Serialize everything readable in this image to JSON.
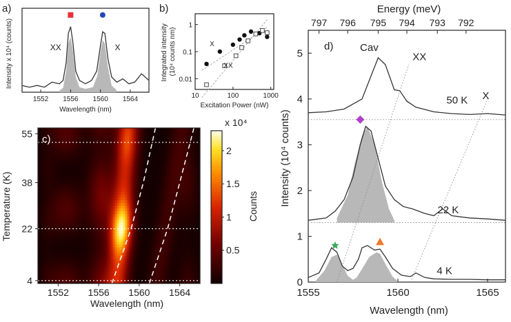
{
  "chart_data": [
    {
      "panel": "a)",
      "type": "area",
      "xlabel": "Wavelength (nm)",
      "ylabel": "Intensity x 10⁴ (counts)",
      "xlim": [
        1549.5,
        1566.5
      ],
      "ylim": [
        0,
        1.0
      ],
      "xticks": [
        1552,
        1556,
        1560,
        1564
      ],
      "line": {
        "x": [
          1549.5,
          1550.5,
          1551.5,
          1552.5,
          1553.5,
          1554.5,
          1555.0,
          1555.4,
          1555.7,
          1556.0,
          1556.3,
          1556.7,
          1557.2,
          1558.0,
          1558.8,
          1559.5,
          1560.0,
          1560.3,
          1560.6,
          1561.0,
          1561.5,
          1562.2,
          1563.0,
          1563.8,
          1564.6,
          1565.5,
          1566.5
        ],
        "y": [
          0.08,
          0.06,
          0.08,
          0.06,
          0.12,
          0.1,
          0.14,
          0.35,
          0.7,
          0.78,
          0.6,
          0.25,
          0.14,
          0.1,
          0.14,
          0.25,
          0.55,
          0.72,
          0.7,
          0.4,
          0.18,
          0.12,
          0.16,
          0.1,
          0.12,
          0.22,
          0.14
        ]
      },
      "fill": {
        "x": [
          1554.5,
          1555.0,
          1555.4,
          1555.7,
          1556.0,
          1556.3,
          1556.7,
          1557.2,
          1558.0,
          1559.0,
          1559.6,
          1560.0,
          1560.3,
          1560.6,
          1561.0,
          1561.5,
          1562.2
        ],
        "y": [
          0.02,
          0.05,
          0.25,
          0.58,
          0.66,
          0.5,
          0.18,
          0.06,
          0.04,
          0.06,
          0.2,
          0.48,
          0.62,
          0.58,
          0.3,
          0.08,
          0.02
        ]
      },
      "annotations": [
        {
          "text": "XX",
          "x": 1554.0,
          "y": 0.5
        },
        {
          "text": "X",
          "x": 1562.3,
          "y": 0.5
        }
      ],
      "markers": [
        {
          "shape": "square",
          "color": "#e8303a",
          "x": 1556.0,
          "y": 0.92
        },
        {
          "shape": "circle",
          "color": "#2846b8",
          "x": 1560.3,
          "y": 0.92
        }
      ]
    },
    {
      "panel": "b)",
      "type": "scatter",
      "xscale": "log",
      "yscale": "log",
      "xlabel": "Excitation Power (nW)",
      "ylabel": "Integrated intensity (10⁴ counts nm)",
      "xlim": [
        10,
        1200
      ],
      "ylim": [
        0.004,
        2.5
      ],
      "xticks": [
        10,
        100,
        1000
      ],
      "xtick_labels": [
        "10",
        "100",
        "1000"
      ],
      "yticks": [
        0.01,
        0.1,
        1
      ],
      "ytick_labels": [
        "0.01",
        "0.1",
        "1"
      ],
      "series": [
        {
          "name": "X",
          "marker": "filled-circle",
          "x": [
            20,
            45,
            100,
            150,
            200,
            300,
            500,
            800
          ],
          "y": [
            0.035,
            0.1,
            0.18,
            0.28,
            0.4,
            0.55,
            0.48,
            0.35
          ]
        },
        {
          "name": "XX",
          "marker": "open-square",
          "x": [
            20,
            60,
            120,
            170,
            250,
            400,
            600,
            800
          ],
          "y": [
            0.006,
            0.03,
            0.07,
            0.14,
            0.25,
            0.45,
            0.6,
            0.5
          ]
        }
      ],
      "annotations": [
        {
          "text": "X",
          "x": 28,
          "y": 0.16
        },
        {
          "text": "XX",
          "x": 75,
          "y": 0.025
        }
      ],
      "guides": [
        {
          "x": [
            15,
            800
          ],
          "y": [
            0.02,
            0.8
          ]
        },
        {
          "x": [
            15,
            800
          ],
          "y": [
            0.002,
            1.5
          ]
        }
      ]
    },
    {
      "panel": "c)",
      "type": "heatmap",
      "xlabel": "Wavelength (nm)",
      "ylabel": "Temperature (K)",
      "colorbar_label": "Counts",
      "colorbar_scale": "x 10⁴",
      "colorbar_ticks": [
        0.5,
        1,
        1.5,
        2
      ],
      "colorbar_tick_labels": [
        "0.5",
        "1",
        "1.5",
        "2"
      ],
      "zlim": [
        0,
        2.3
      ],
      "xlim": [
        1550,
        1566
      ],
      "ylim": [
        3,
        57
      ],
      "xticks": [
        1552,
        1556,
        1560,
        1564
      ],
      "yticks": [
        4,
        22,
        38,
        55
      ],
      "dashed_guides": [
        {
          "x": [
            1557.3,
            1559.2,
            1560.4,
            1561.6
          ],
          "y": [
            3,
            22,
            38,
            57
          ]
        },
        {
          "x": [
            1561.0,
            1562.8,
            1564.0,
            1565.4
          ],
          "y": [
            3,
            22,
            38,
            57
          ]
        }
      ],
      "reference_temperatures": [
        4,
        22,
        52
      ]
    },
    {
      "panel": "d)",
      "type": "line",
      "xlabel": "Wavelength (nm)",
      "ylabel": "Intensity (10⁴ counts)",
      "top_xlabel": "Energy (meV)",
      "top_xtick_labels": [
        "797",
        "796",
        "795",
        "794",
        "793",
        "792"
      ],
      "top_xtick_positions": [
        1555.6,
        1557.2,
        1558.9,
        1560.5,
        1562.2,
        1563.8
      ],
      "xlim": [
        1555,
        1566
      ],
      "ylim": [
        0,
        5.5
      ],
      "xticks": [
        1555,
        1560,
        1565
      ],
      "yticks": [
        0,
        1,
        2,
        3,
        4,
        5
      ],
      "series": [
        {
          "name": "50 K",
          "x": [
            1555.0,
            1556.0,
            1557.0,
            1558.0,
            1558.5,
            1558.9,
            1559.3,
            1559.8,
            1560.1,
            1560.5,
            1561.0,
            1562.0,
            1563.0,
            1564.0,
            1565.0,
            1566.0
          ],
          "y": [
            3.7,
            3.72,
            3.78,
            4.0,
            4.5,
            4.9,
            4.75,
            4.2,
            4.18,
            3.95,
            3.82,
            3.72,
            3.68,
            3.66,
            3.68,
            3.65
          ]
        },
        {
          "name": "22 K",
          "x": [
            1555.0,
            1556.0,
            1556.5,
            1557.0,
            1557.5,
            1557.9,
            1558.2,
            1558.5,
            1558.9,
            1559.3,
            1559.8,
            1560.3,
            1560.8,
            1561.5,
            1562.0,
            1562.5,
            1563.0,
            1564.0,
            1565.0,
            1566.0
          ],
          "y": [
            1.35,
            1.4,
            1.55,
            1.8,
            2.3,
            3.0,
            3.4,
            3.3,
            2.7,
            2.1,
            1.8,
            1.65,
            1.6,
            1.5,
            1.45,
            1.6,
            1.45,
            1.4,
            1.38,
            1.35
          ]
        },
        {
          "name": "4 K",
          "x": [
            1555.0,
            1555.6,
            1556.0,
            1556.3,
            1556.6,
            1556.9,
            1557.2,
            1557.5,
            1557.8,
            1558.0,
            1558.3,
            1558.7,
            1559.0,
            1559.3,
            1559.7,
            1560.2,
            1560.7,
            1561.0,
            1561.5,
            1562.0,
            1563.0,
            1564.0,
            1565.0,
            1566.0
          ],
          "y": [
            0.1,
            0.2,
            0.5,
            0.75,
            0.65,
            0.35,
            0.25,
            0.3,
            0.5,
            0.75,
            0.8,
            0.7,
            0.72,
            0.55,
            0.3,
            0.15,
            0.12,
            0.2,
            0.1,
            0.07,
            0.06,
            0.06,
            0.05,
            0.05
          ]
        }
      ],
      "fills": [
        {
          "name": "22 K",
          "x": [
            1556.6,
            1557.2,
            1557.6,
            1558.0,
            1558.3,
            1558.7,
            1559.1,
            1559.5,
            1559.8
          ],
          "y": [
            0.1,
            0.6,
            1.3,
            1.9,
            2.1,
            1.7,
            0.9,
            0.3,
            0.05
          ],
          "baseline": 1.3
        },
        {
          "name": "4 K",
          "x": [
            1555.4,
            1555.9,
            1556.3,
            1556.6,
            1556.9,
            1557.2,
            1557.5,
            1557.7,
            1558.1,
            1558.4,
            1558.8,
            1559.0,
            1559.3,
            1559.7,
            1560.0
          ],
          "y": [
            0.02,
            0.25,
            0.55,
            0.6,
            0.38,
            0.14,
            0.05,
            0.1,
            0.35,
            0.55,
            0.65,
            0.62,
            0.4,
            0.12,
            0.02
          ],
          "baseline": 0
        }
      ],
      "baselines": [
        3.55,
        1.3
      ],
      "annotations": [
        {
          "text": "Cav",
          "x": 1558.4,
          "y": 5.05
        },
        {
          "text": "XX",
          "x": 1561.2,
          "y": 4.85
        },
        {
          "text": "X",
          "x": 1564.9,
          "y": 4.0
        },
        {
          "text": "50 K",
          "x": 1563.3,
          "y": 3.9
        },
        {
          "text": "22 K",
          "x": 1562.8,
          "y": 1.5
        },
        {
          "text": "4 K",
          "x": 1562.6,
          "y": 0.17
        }
      ],
      "dotted_guides": [
        {
          "x": [
            1556.6,
            1560.6
          ],
          "y": [
            0.0,
            4.75
          ]
        },
        {
          "x": [
            1560.7,
            1565.0
          ],
          "y": [
            0.0,
            4.0
          ]
        }
      ],
      "markers": [
        {
          "shape": "diamond",
          "color": "#b040c8",
          "x": 1557.9,
          "y": 3.55
        },
        {
          "shape": "star",
          "color": "#3aa85a",
          "x": 1556.5,
          "y": 0.8
        },
        {
          "shape": "triangle",
          "color": "#ef7a2e",
          "x": 1559.0,
          "y": 0.88
        }
      ]
    }
  ]
}
